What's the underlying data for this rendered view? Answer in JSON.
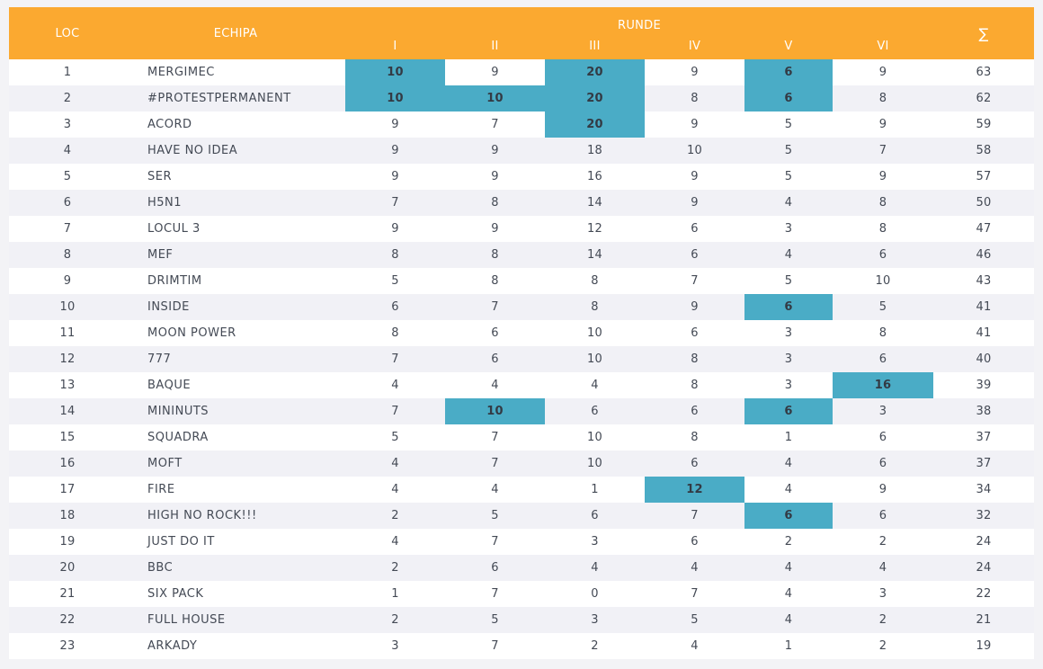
{
  "header": {
    "loc": "LOC",
    "team": "ECHIPA",
    "rounds_title": "RUNDE",
    "rounds": [
      "I",
      "II",
      "III",
      "IV",
      "V",
      "VI"
    ],
    "sum": "∑"
  },
  "highlight_color": "#4aacc6",
  "header_color": "#fba930",
  "rows": [
    {
      "loc": "1",
      "team": "MERGIMEC",
      "scores": [
        "10",
        "9",
        "20",
        "9",
        "6",
        "9"
      ],
      "total": "63",
      "highlight": [
        0,
        2,
        4
      ]
    },
    {
      "loc": "2",
      "team": "#PROTESTPERMANENT",
      "scores": [
        "10",
        "10",
        "20",
        "8",
        "6",
        "8"
      ],
      "total": "62",
      "highlight": [
        0,
        1,
        2,
        4
      ]
    },
    {
      "loc": "3",
      "team": "ACORD",
      "scores": [
        "9",
        "7",
        "20",
        "9",
        "5",
        "9"
      ],
      "total": "59",
      "highlight": [
        2
      ]
    },
    {
      "loc": "4",
      "team": "HAVE NO IDEA",
      "scores": [
        "9",
        "9",
        "18",
        "10",
        "5",
        "7"
      ],
      "total": "58",
      "highlight": []
    },
    {
      "loc": "5",
      "team": "SER",
      "scores": [
        "9",
        "9",
        "16",
        "9",
        "5",
        "9"
      ],
      "total": "57",
      "highlight": []
    },
    {
      "loc": "6",
      "team": "H5N1",
      "scores": [
        "7",
        "8",
        "14",
        "9",
        "4",
        "8"
      ],
      "total": "50",
      "highlight": []
    },
    {
      "loc": "7",
      "team": "LOCUL 3",
      "scores": [
        "9",
        "9",
        "12",
        "6",
        "3",
        "8"
      ],
      "total": "47",
      "highlight": []
    },
    {
      "loc": "8",
      "team": "MEF",
      "scores": [
        "8",
        "8",
        "14",
        "6",
        "4",
        "6"
      ],
      "total": "46",
      "highlight": []
    },
    {
      "loc": "9",
      "team": "DRIMTIM",
      "scores": [
        "5",
        "8",
        "8",
        "7",
        "5",
        "10"
      ],
      "total": "43",
      "highlight": []
    },
    {
      "loc": "10",
      "team": "INSIDE",
      "scores": [
        "6",
        "7",
        "8",
        "9",
        "6",
        "5"
      ],
      "total": "41",
      "highlight": [
        4
      ]
    },
    {
      "loc": "11",
      "team": "MOON POWER",
      "scores": [
        "8",
        "6",
        "10",
        "6",
        "3",
        "8"
      ],
      "total": "41",
      "highlight": []
    },
    {
      "loc": "12",
      "team": "777",
      "scores": [
        "7",
        "6",
        "10",
        "8",
        "3",
        "6"
      ],
      "total": "40",
      "highlight": []
    },
    {
      "loc": "13",
      "team": "BAQUE",
      "scores": [
        "4",
        "4",
        "4",
        "8",
        "3",
        "16"
      ],
      "total": "39",
      "highlight": [
        5
      ]
    },
    {
      "loc": "14",
      "team": "MININUTS",
      "scores": [
        "7",
        "10",
        "6",
        "6",
        "6",
        "3"
      ],
      "total": "38",
      "highlight": [
        1,
        4
      ]
    },
    {
      "loc": "15",
      "team": "SQUADRA",
      "scores": [
        "5",
        "7",
        "10",
        "8",
        "1",
        "6"
      ],
      "total": "37",
      "highlight": []
    },
    {
      "loc": "16",
      "team": "MOFT",
      "scores": [
        "4",
        "7",
        "10",
        "6",
        "4",
        "6"
      ],
      "total": "37",
      "highlight": []
    },
    {
      "loc": "17",
      "team": "FIRE",
      "scores": [
        "4",
        "4",
        "1",
        "12",
        "4",
        "9"
      ],
      "total": "34",
      "highlight": [
        3
      ]
    },
    {
      "loc": "18",
      "team": "HIGH NO ROCK!!!",
      "scores": [
        "2",
        "5",
        "6",
        "7",
        "6",
        "6"
      ],
      "total": "32",
      "highlight": [
        4
      ]
    },
    {
      "loc": "19",
      "team": "JUST DO IT",
      "scores": [
        "4",
        "7",
        "3",
        "6",
        "2",
        "2"
      ],
      "total": "24",
      "highlight": []
    },
    {
      "loc": "20",
      "team": "BBC",
      "scores": [
        "2",
        "6",
        "4",
        "4",
        "4",
        "4"
      ],
      "total": "24",
      "highlight": []
    },
    {
      "loc": "21",
      "team": "SIX PACK",
      "scores": [
        "1",
        "7",
        "0",
        "7",
        "4",
        "3"
      ],
      "total": "22",
      "highlight": []
    },
    {
      "loc": "22",
      "team": "FULL HOUSE",
      "scores": [
        "2",
        "5",
        "3",
        "5",
        "4",
        "2"
      ],
      "total": "21",
      "highlight": []
    },
    {
      "loc": "23",
      "team": "ARKADY",
      "scores": [
        "3",
        "7",
        "2",
        "4",
        "1",
        "2"
      ],
      "total": "19",
      "highlight": []
    }
  ]
}
